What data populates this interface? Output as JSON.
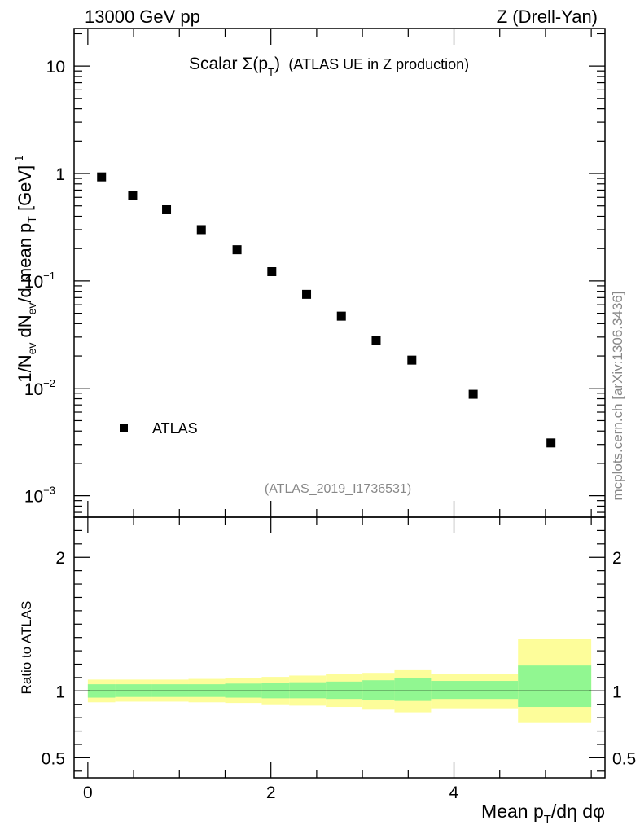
{
  "header": {
    "left": "13000 GeV pp",
    "right": "Z (Drell-Yan)"
  },
  "side_label": "mcplots.cern.ch [arXiv:1306.3436]",
  "chart_data": {
    "type": "scatter",
    "title_main": "Scalar Σ(p",
    "title_sub": "T",
    "title_close": ")",
    "title_rest": "(ATLAS UE in Z production)",
    "analysis_id": "(ATLAS_2019_I1736531)",
    "ylabel": "1/N_ev dN_ev/d mean p_T [GeV]^-1",
    "xlabel": "Mean p_T/dη dφ",
    "x_range": [
      -0.15,
      5.65
    ],
    "y_range_log10": [
      -3.2,
      1.35
    ],
    "y_ticks": [
      {
        "value": 10,
        "mantissa": "10",
        "exponent": ""
      },
      {
        "value": 1,
        "mantissa": "1",
        "exponent": ""
      },
      {
        "value": 0.1,
        "mantissa": "10",
        "exponent": "−1"
      },
      {
        "value": 0.01,
        "mantissa": "10",
        "exponent": "−2"
      },
      {
        "value": 0.001,
        "mantissa": "10",
        "exponent": "−3"
      }
    ],
    "x_ticks": [
      {
        "value": 0,
        "label": "0"
      },
      {
        "value": 2,
        "label": "2"
      },
      {
        "value": 4,
        "label": "4"
      }
    ],
    "series": [
      {
        "name": "ATLAS",
        "x": [
          0.15,
          0.49,
          0.86,
          1.24,
          1.63,
          2.01,
          2.39,
          2.77,
          3.15,
          3.54,
          4.21,
          5.06
        ],
        "y": [
          0.93,
          0.62,
          0.46,
          0.3,
          0.195,
          0.122,
          0.075,
          0.047,
          0.028,
          0.0183,
          0.0088,
          0.0031
        ]
      }
    ],
    "legend": [
      {
        "label": "ATLAS",
        "marker": "square"
      }
    ],
    "ratio": {
      "ylabel": "Ratio to ATLAS",
      "y_range": [
        0.35,
        2.3
      ],
      "y_ticks": [
        {
          "value": 0.5,
          "label": "0.5"
        },
        {
          "value": 1,
          "label": "1"
        },
        {
          "value": 2,
          "label": "2"
        }
      ],
      "bin_edges": [
        0,
        0.3,
        0.7,
        1.1,
        1.5,
        1.9,
        2.2,
        2.6,
        3.0,
        3.35,
        3.75,
        4.7,
        5.5
      ],
      "inner_low": [
        0.95,
        0.955,
        0.955,
        0.955,
        0.95,
        0.945,
        0.945,
        0.94,
        0.935,
        0.925,
        0.94,
        0.88
      ],
      "inner_high": [
        1.05,
        1.05,
        1.05,
        1.05,
        1.055,
        1.06,
        1.065,
        1.07,
        1.08,
        1.095,
        1.075,
        1.19
      ],
      "outer_low": [
        0.915,
        0.92,
        0.92,
        0.915,
        0.91,
        0.9,
        0.89,
        0.88,
        0.86,
        0.84,
        0.87,
        0.76
      ],
      "outer_high": [
        1.085,
        1.085,
        1.085,
        1.09,
        1.095,
        1.105,
        1.115,
        1.125,
        1.135,
        1.155,
        1.13,
        1.39
      ]
    },
    "colors": {
      "inner_band": "#91f791",
      "outer_band": "#fdfd9a",
      "marker": "#000000",
      "grey_text": "#888888"
    }
  }
}
